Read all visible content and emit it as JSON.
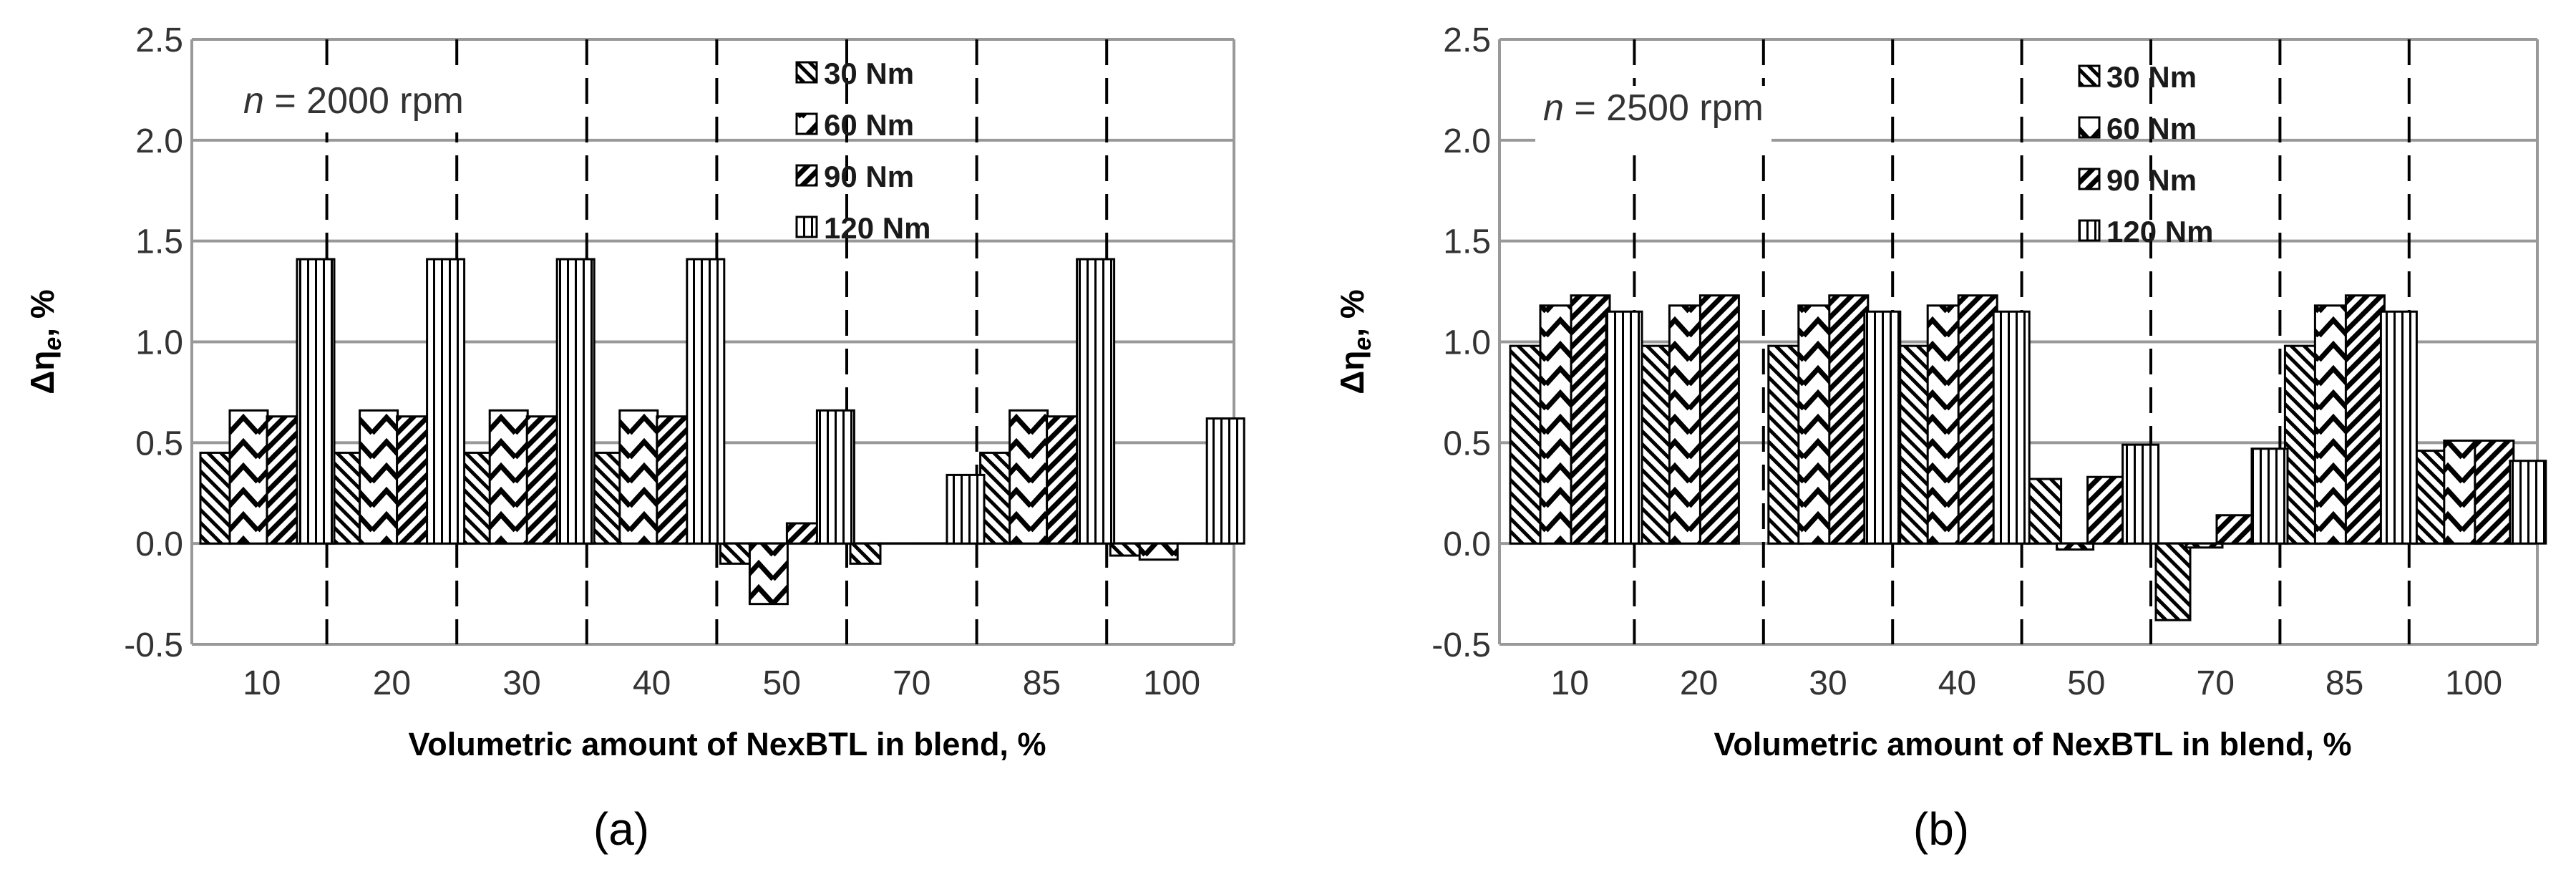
{
  "colors": {
    "bar_stroke": "#000000",
    "grid": "#999999",
    "divider": "#000000",
    "text": "#333333",
    "axis_title": "#000000",
    "background": "#ffffff"
  },
  "chart_data": [
    {
      "type": "bar",
      "panel_label": "(a)",
      "speed_label": {
        "n": "n",
        "rest": " = 2000 rpm"
      },
      "xlabel": "Volumetric amount of NexBTL in blend, %",
      "ylabel": {
        "main": "Δη",
        "sub": "e",
        "suffix": ", %"
      },
      "ylim": [
        -0.5,
        2.5
      ],
      "yticks": [
        "-0.5",
        "0.0",
        "0.5",
        "1.0",
        "1.5",
        "2.0",
        "2.5"
      ],
      "categories": [
        "10",
        "20",
        "30",
        "40",
        "50",
        "70",
        "85",
        "100"
      ],
      "legend_position": "top-center",
      "series": [
        {
          "name": "30 Nm",
          "pattern": "diag-down",
          "values": [
            0.45,
            0.45,
            0.45,
            0.45,
            -0.1,
            -0.1,
            0.45,
            -0.06
          ]
        },
        {
          "name": "60 Nm",
          "pattern": "chevron",
          "values": [
            0.66,
            0.66,
            0.66,
            0.66,
            -0.3,
            0.0,
            0.66,
            -0.08
          ]
        },
        {
          "name": "90 Nm",
          "pattern": "diag-up",
          "values": [
            0.63,
            0.63,
            0.63,
            0.63,
            0.1,
            0.0,
            0.63,
            0.0
          ]
        },
        {
          "name": "120 Nm",
          "pattern": "vertical",
          "values": [
            1.41,
            1.41,
            1.41,
            1.41,
            0.66,
            0.34,
            1.41,
            0.62
          ]
        }
      ]
    },
    {
      "type": "bar",
      "panel_label": "(b)",
      "speed_label": {
        "n": "n",
        "rest": " = 2500 rpm"
      },
      "xlabel": "Volumetric amount of NexBTL in blend, %",
      "ylabel": {
        "main": "Δη",
        "sub": "e",
        "suffix": ", %"
      },
      "ylim": [
        -0.5,
        2.5
      ],
      "yticks": [
        "-0.5",
        "0.0",
        "0.5",
        "1.0",
        "1.5",
        "2.0",
        "2.5"
      ],
      "categories": [
        "10",
        "20",
        "30",
        "40",
        "50",
        "70",
        "85",
        "100"
      ],
      "legend_position": "top-center",
      "series": [
        {
          "name": "30 Nm",
          "pattern": "diag-down",
          "values": [
            0.98,
            0.98,
            0.98,
            0.98,
            0.32,
            -0.38,
            0.98,
            0.46
          ]
        },
        {
          "name": "60 Nm",
          "pattern": "chevron",
          "values": [
            1.18,
            1.18,
            1.18,
            1.18,
            -0.03,
            -0.02,
            1.18,
            0.51
          ]
        },
        {
          "name": "90 Nm",
          "pattern": "diag-up",
          "values": [
            1.23,
            1.23,
            1.23,
            1.23,
            0.33,
            0.14,
            1.23,
            0.51
          ]
        },
        {
          "name": "120 Nm",
          "pattern": "vertical",
          "values": [
            1.15,
            0.0,
            1.15,
            1.15,
            0.49,
            0.47,
            1.15,
            0.41
          ]
        }
      ]
    }
  ]
}
